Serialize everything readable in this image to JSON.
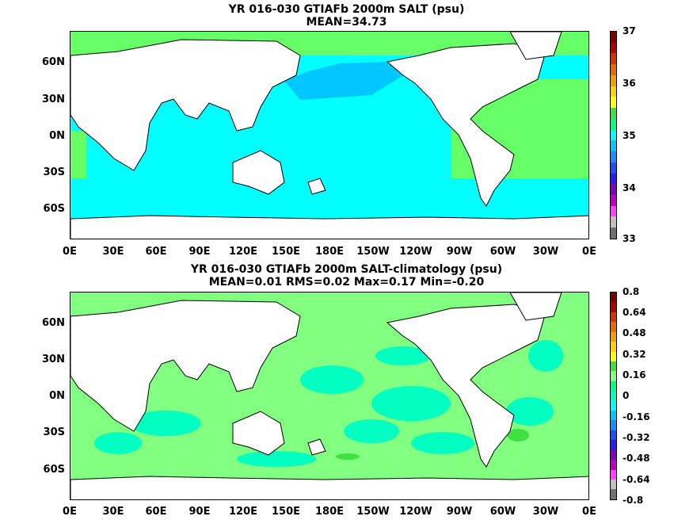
{
  "top_panel": {
    "title": "YR 016-030 GTIAFb 2000m SALT (psu)",
    "subtitle": "MEAN=34.73",
    "colorbar": {
      "labels": [
        "37",
        "36",
        "35",
        "34",
        "33"
      ],
      "colors": [
        "#7f0000",
        "#b10000",
        "#d43000",
        "#e86a00",
        "#f2a200",
        "#ffd200",
        "#ffff00",
        "#40e040",
        "#00ff80",
        "#00ffff",
        "#00c8ff",
        "#1a8cff",
        "#1f4dff",
        "#2a1aff",
        "#8000c0",
        "#c000c0",
        "#ff40ff",
        "#c0c0c0",
        "#707070"
      ]
    }
  },
  "bottom_panel": {
    "title": "YR 016-030 GTIAFb 2000m SALT-climatology (psu)",
    "subtitle": "MEAN=0.01   RMS=0.02   Max=0.17   Min=-0.20",
    "colorbar": {
      "labels": [
        "0.8",
        "0.64",
        "0.48",
        "0.32",
        "0.16",
        "0",
        "-0.16",
        "-0.32",
        "-0.48",
        "-0.64",
        "-0.8"
      ],
      "colors": [
        "#7f0000",
        "#b10000",
        "#d43000",
        "#e86a00",
        "#f2a200",
        "#ffd200",
        "#ffff00",
        "#40e040",
        "#80ff80",
        "#00ff80",
        "#00ffc0",
        "#00ffff",
        "#00c8ff",
        "#1a8cff",
        "#1f4dff",
        "#2a1aff",
        "#8000c0",
        "#c000c0",
        "#ff40ff",
        "#c0c0c0",
        "#707070"
      ]
    }
  },
  "x_ticks": [
    "0E",
    "30E",
    "60E",
    "90E",
    "120E",
    "150E",
    "180E",
    "150W",
    "120W",
    "90W",
    "60W",
    "30W",
    "0E"
  ],
  "y_ticks": [
    "60N",
    "30N",
    "0N",
    "30S",
    "60S"
  ],
  "colors": {
    "land": "#ffffff",
    "coast": "#000000",
    "ocean_top_main": "#00ffff",
    "ocean_top_atlantic": "#66ff66",
    "ocean_top_npac": "#00c8ff",
    "ocean_bottom_main": "#80ff80",
    "ocean_bottom_alt": "#00ffc0"
  }
}
